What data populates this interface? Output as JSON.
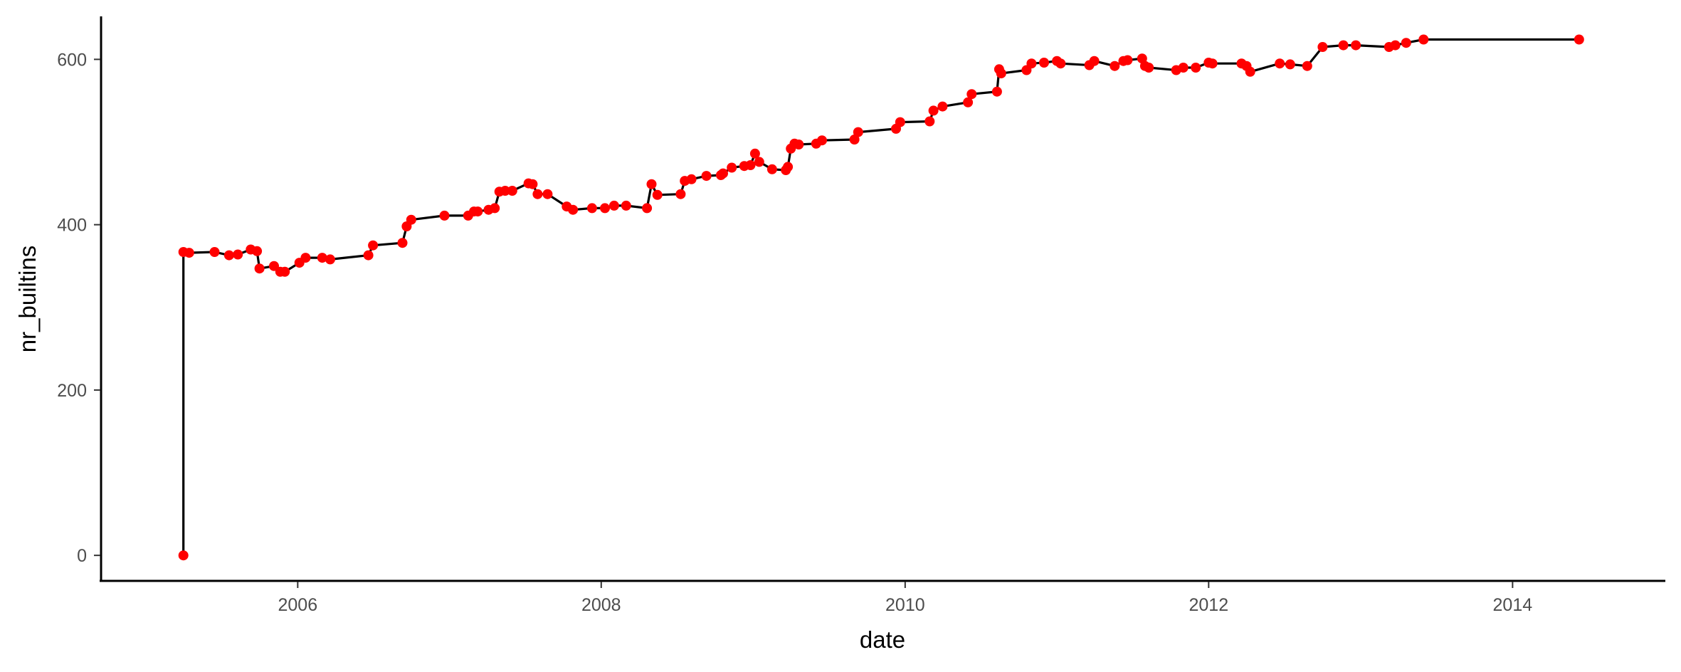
{
  "chart_data": {
    "type": "line",
    "title": "",
    "xlabel": "date",
    "ylabel": "nr_builtins",
    "x_type": "date",
    "xlim": [
      "2004-09-15",
      "2014-12-31"
    ],
    "ylim": [
      -30,
      652
    ],
    "x_ticks": [
      "2006",
      "2008",
      "2010",
      "2012",
      "2014"
    ],
    "y_ticks": [
      0,
      200,
      400,
      600
    ],
    "grid": false,
    "legend": "none",
    "line_color": "#000000",
    "point_color": "#ff0000",
    "series": [
      {
        "x": [
          "2005-04-01",
          "2005-04-01",
          "2005-04-15",
          "2005-06-15",
          "2005-07-20",
          "2005-08-10",
          "2005-09-10",
          "2005-09-25",
          "2005-10-01",
          "2005-11-05",
          "2005-11-20",
          "2005-12-01",
          "2006-01-05",
          "2006-01-20",
          "2006-03-01",
          "2006-03-20",
          "2006-06-20",
          "2006-07-01",
          "2006-09-10",
          "2006-09-20",
          "2006-10-01",
          "2006-12-20",
          "2007-02-15",
          "2007-03-01",
          "2007-03-10",
          "2007-04-05",
          "2007-04-20",
          "2007-05-01",
          "2007-05-15",
          "2007-06-01",
          "2007-07-10",
          "2007-07-20",
          "2007-08-01",
          "2007-08-25",
          "2007-10-10",
          "2007-10-25",
          "2007-12-10",
          "2008-01-10",
          "2008-02-01",
          "2008-03-01",
          "2008-04-20",
          "2008-05-01",
          "2008-05-15",
          "2008-07-10",
          "2008-07-20",
          "2008-08-05",
          "2008-09-10",
          "2008-10-15",
          "2008-10-20",
          "2008-11-10",
          "2008-12-10",
          "2008-12-25",
          "2009-01-05",
          "2009-01-15",
          "2009-02-15",
          "2009-03-20",
          "2009-03-25",
          "2009-04-01",
          "2009-04-10",
          "2009-04-20",
          "2009-06-01",
          "2009-06-15",
          "2009-09-01",
          "2009-09-10",
          "2009-12-10",
          "2009-12-20",
          "2010-03-01",
          "2010-03-10",
          "2010-04-01",
          "2010-06-01",
          "2010-06-10",
          "2010-08-10",
          "2010-08-15",
          "2010-08-20",
          "2010-10-20",
          "2010-11-01",
          "2010-12-01",
          "2011-01-01",
          "2011-01-10",
          "2011-03-20",
          "2011-04-01",
          "2011-05-20",
          "2011-06-10",
          "2011-06-20",
          "2011-07-25",
          "2011-08-01",
          "2011-08-10",
          "2011-10-15",
          "2011-11-01",
          "2011-12-01",
          "2012-01-01",
          "2012-01-10",
          "2012-03-20",
          "2012-04-01",
          "2012-04-10",
          "2012-06-20",
          "2012-07-15",
          "2012-08-25",
          "2012-10-01",
          "2012-11-20",
          "2012-12-20",
          "2013-03-10",
          "2013-03-25",
          "2013-04-20",
          "2013-06-01",
          "2014-06-10"
        ],
        "y": [
          0,
          367,
          366,
          367,
          363,
          364,
          370,
          368,
          347,
          350,
          343,
          343,
          354,
          360,
          360,
          358,
          363,
          375,
          378,
          398,
          406,
          411,
          411,
          416,
          416,
          418,
          420,
          440,
          441,
          441,
          450,
          449,
          437,
          437,
          422,
          418,
          420,
          420,
          423,
          423,
          420,
          449,
          436,
          437,
          453,
          455,
          459,
          460,
          462,
          469,
          471,
          472,
          486,
          476,
          467,
          466,
          470,
          492,
          498,
          497,
          498,
          502,
          503,
          512,
          516,
          524,
          525,
          538,
          543,
          548,
          558,
          561,
          588,
          583,
          587,
          595,
          596,
          598,
          595,
          593,
          598,
          592,
          598,
          599,
          601,
          592,
          590,
          587,
          590,
          590,
          596,
          595,
          595,
          592,
          585,
          595,
          594,
          592,
          615,
          617,
          617,
          615,
          617,
          620,
          624,
          624
        ]
      }
    ]
  }
}
